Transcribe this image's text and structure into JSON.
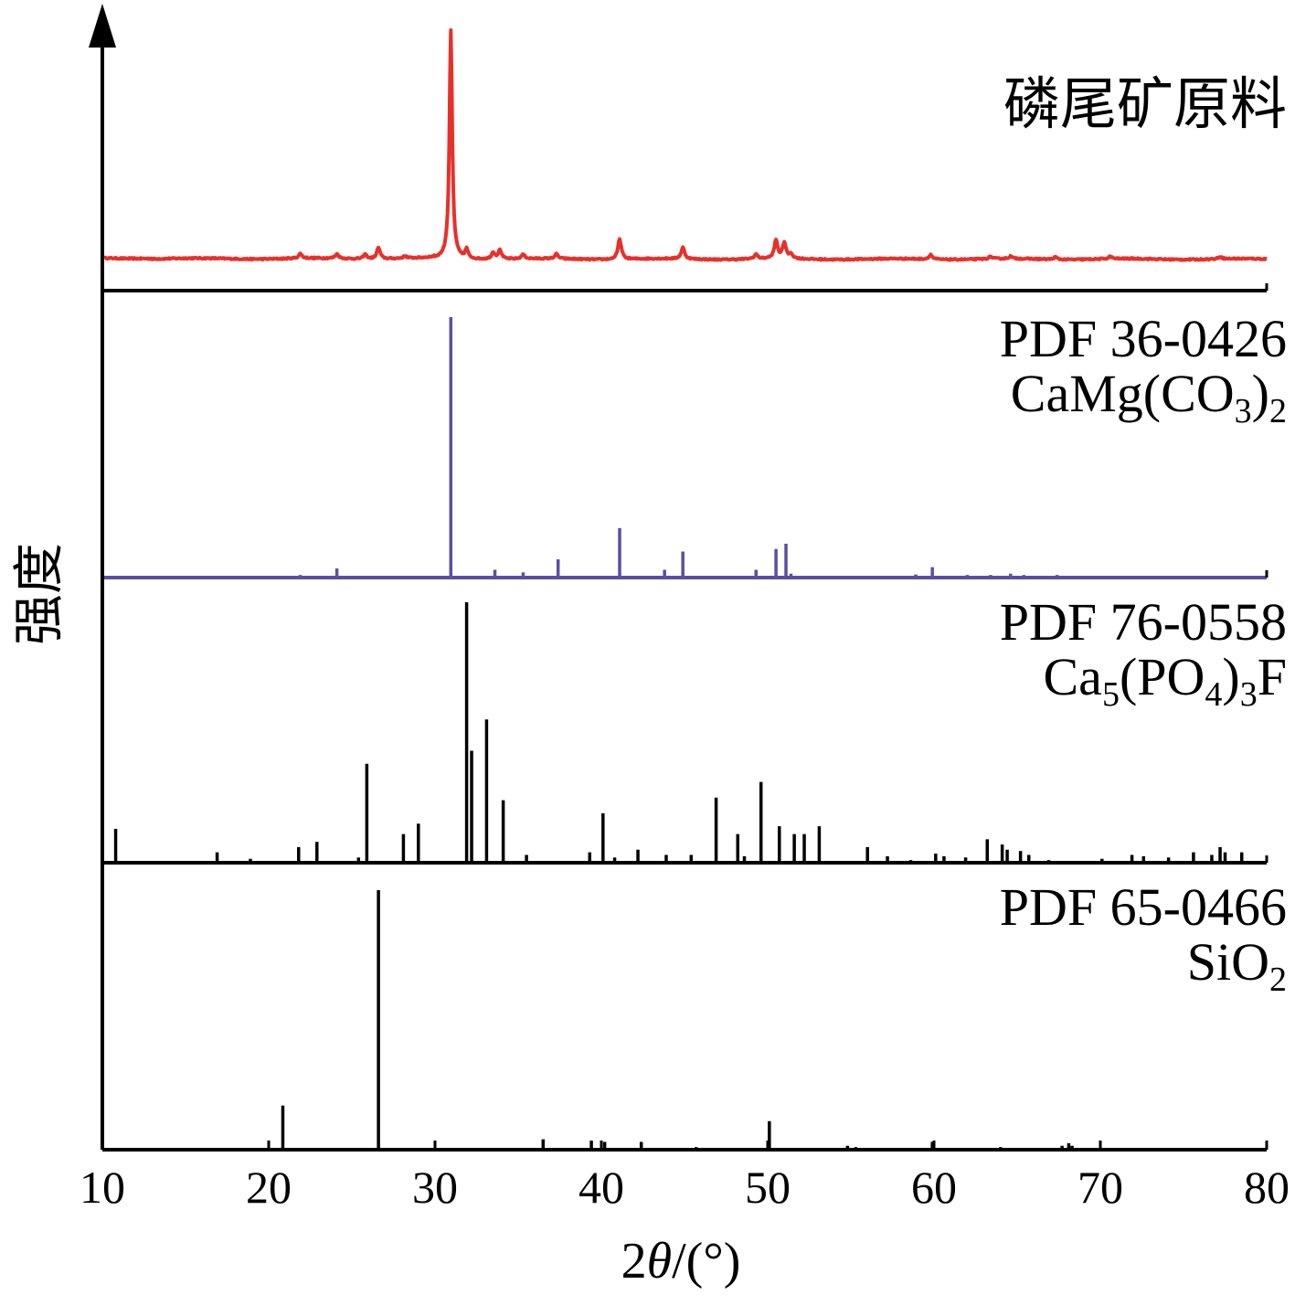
{
  "chart_data": {
    "type": "line",
    "xlabel_parts": [
      "2",
      "θ",
      "/(°)"
    ],
    "ylabel": "强度",
    "xlim": [
      10,
      80
    ],
    "xticks": [
      "10",
      "20",
      "30",
      "40",
      "50",
      "60",
      "70",
      "80"
    ],
    "stacked": true,
    "panels": [
      {
        "kind": "pattern",
        "label_lines": [
          "磷尾矿原料"
        ],
        "color": "#e8302a",
        "peaks": [
          [
            21.9,
            0.02
          ],
          [
            24.1,
            0.02
          ],
          [
            25.8,
            0.02
          ],
          [
            26.6,
            0.05
          ],
          [
            28.2,
            0.01
          ],
          [
            30.95,
            1.0
          ],
          [
            31.9,
            0.04
          ],
          [
            33.5,
            0.03
          ],
          [
            33.9,
            0.04
          ],
          [
            35.3,
            0.02
          ],
          [
            37.3,
            0.02
          ],
          [
            41.1,
            0.09
          ],
          [
            44.9,
            0.05
          ],
          [
            49.3,
            0.02
          ],
          [
            50.5,
            0.08
          ],
          [
            51.0,
            0.07
          ],
          [
            51.4,
            0.02
          ],
          [
            59.8,
            0.02
          ],
          [
            63.4,
            0.01
          ],
          [
            64.6,
            0.01
          ],
          [
            67.3,
            0.01
          ],
          [
            70.6,
            0.01
          ],
          [
            77.2,
            0.01
          ]
        ]
      },
      {
        "kind": "sticks",
        "label_lines": [
          "PDF 36-0426",
          "CaMg(CO3)2"
        ],
        "label_parts": [
          [
            {
              "t": "PDF 36-0426"
            }
          ],
          [
            {
              "t": "CaMg(CO"
            },
            {
              "t": "3",
              "sub": true
            },
            {
              "t": ")"
            },
            {
              "t": "2",
              "sub": true
            }
          ]
        ],
        "color": "#5a4fa3",
        "peaks": [
          [
            30.95,
            1.0
          ],
          [
            24.1,
            0.035
          ],
          [
            21.9,
            0.01
          ],
          [
            33.6,
            0.03
          ],
          [
            35.3,
            0.02
          ],
          [
            37.4,
            0.07
          ],
          [
            41.1,
            0.19
          ],
          [
            43.8,
            0.03
          ],
          [
            44.9,
            0.1
          ],
          [
            49.3,
            0.03
          ],
          [
            50.5,
            0.11
          ],
          [
            51.1,
            0.13
          ],
          [
            51.4,
            0.015
          ],
          [
            58.9,
            0.012
          ],
          [
            59.9,
            0.04
          ],
          [
            62.0,
            0.01
          ],
          [
            63.4,
            0.01
          ],
          [
            64.6,
            0.015
          ],
          [
            65.4,
            0.01
          ],
          [
            67.4,
            0.01
          ],
          [
            70.4,
            0.005
          ],
          [
            72.9,
            0.005
          ],
          [
            74.7,
            0.005
          ],
          [
            77.0,
            0.005
          ]
        ]
      },
      {
        "kind": "sticks",
        "label_lines": [
          "PDF 76-0558",
          "Ca5(PO4)3F"
        ],
        "label_parts": [
          [
            {
              "t": "PDF 76-0558"
            }
          ],
          [
            {
              "t": "Ca"
            },
            {
              "t": "5",
              "sub": true
            },
            {
              "t": "(PO"
            },
            {
              "t": "4",
              "sub": true
            },
            {
              "t": ")"
            },
            {
              "t": "3",
              "sub": true
            },
            {
              "t": "F"
            }
          ]
        ],
        "color": "#000000",
        "peaks": [
          [
            10.8,
            0.13
          ],
          [
            16.9,
            0.04
          ],
          [
            18.9,
            0.015
          ],
          [
            21.8,
            0.06
          ],
          [
            22.9,
            0.08
          ],
          [
            25.4,
            0.02
          ],
          [
            25.9,
            0.38
          ],
          [
            28.1,
            0.11
          ],
          [
            29.0,
            0.15
          ],
          [
            31.9,
            1.0
          ],
          [
            32.2,
            0.43
          ],
          [
            33.1,
            0.55
          ],
          [
            34.1,
            0.24
          ],
          [
            35.5,
            0.03
          ],
          [
            39.3,
            0.04
          ],
          [
            40.1,
            0.19
          ],
          [
            40.8,
            0.02
          ],
          [
            42.2,
            0.05
          ],
          [
            43.9,
            0.03
          ],
          [
            45.4,
            0.03
          ],
          [
            46.9,
            0.25
          ],
          [
            48.2,
            0.11
          ],
          [
            48.6,
            0.025
          ],
          [
            49.6,
            0.31
          ],
          [
            50.7,
            0.14
          ],
          [
            51.6,
            0.11
          ],
          [
            52.2,
            0.11
          ],
          [
            53.1,
            0.14
          ],
          [
            56.0,
            0.06
          ],
          [
            57.2,
            0.025
          ],
          [
            58.6,
            0.01
          ],
          [
            60.1,
            0.035
          ],
          [
            60.6,
            0.025
          ],
          [
            61.9,
            0.02
          ],
          [
            63.2,
            0.09
          ],
          [
            64.1,
            0.07
          ],
          [
            64.4,
            0.05
          ],
          [
            65.2,
            0.045
          ],
          [
            65.7,
            0.03
          ],
          [
            66.9,
            0.01
          ],
          [
            70.1,
            0.015
          ],
          [
            71.9,
            0.03
          ],
          [
            72.6,
            0.025
          ],
          [
            74.1,
            0.02
          ],
          [
            75.6,
            0.04
          ],
          [
            76.7,
            0.03
          ],
          [
            77.2,
            0.06
          ],
          [
            77.5,
            0.04
          ],
          [
            78.5,
            0.04
          ]
        ]
      },
      {
        "kind": "sticks",
        "label_lines": [
          "PDF 65-0466",
          "SiO2"
        ],
        "label_parts": [
          [
            {
              "t": "PDF 65-0466"
            }
          ],
          [
            {
              "t": "SiO"
            },
            {
              "t": "2",
              "sub": true
            }
          ]
        ],
        "color": "#000000",
        "peaks": [
          [
            20.85,
            0.17
          ],
          [
            26.6,
            1.0
          ],
          [
            36.5,
            0.04
          ],
          [
            39.4,
            0.035
          ],
          [
            40.2,
            0.03
          ],
          [
            42.4,
            0.03
          ],
          [
            45.7,
            0.01
          ],
          [
            50.1,
            0.11
          ],
          [
            54.8,
            0.015
          ],
          [
            55.3,
            0.01
          ],
          [
            59.9,
            0.03
          ],
          [
            64.0,
            0.01
          ],
          [
            67.7,
            0.015
          ],
          [
            68.1,
            0.025
          ],
          [
            68.3,
            0.015
          ],
          [
            73.4,
            0.005
          ],
          [
            75.6,
            0.005
          ],
          [
            77.6,
            0.005
          ],
          [
            79.8,
            0.005
          ]
        ]
      }
    ]
  }
}
